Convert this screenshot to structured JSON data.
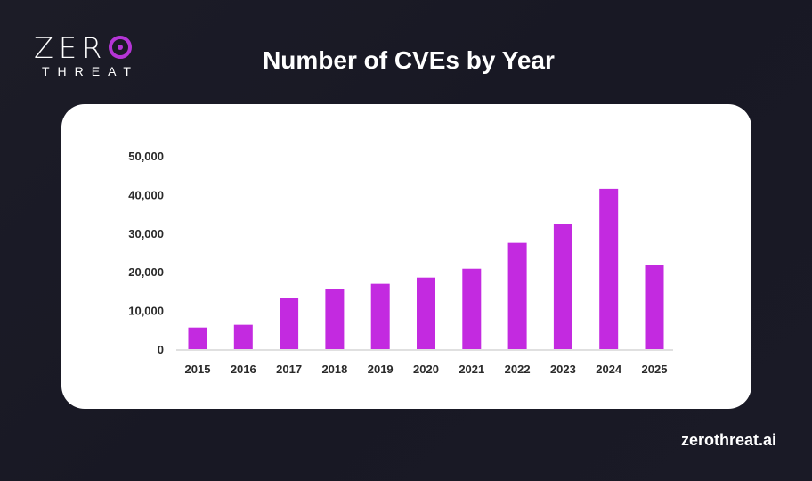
{
  "logo": {
    "line1": "ZER",
    "line2": "THREAT"
  },
  "footer": {
    "site": "zerothreat.ai"
  },
  "colors": {
    "bar": "#c32ae0",
    "background": "#1a1a25",
    "card": "#ffffff"
  },
  "chart_data": {
    "type": "bar",
    "title": "Number of CVEs by Year",
    "xlabel": "",
    "ylabel": "",
    "categories": [
      "2015",
      "2016",
      "2017",
      "2018",
      "2019",
      "2020",
      "2021",
      "2022",
      "2023",
      "2024",
      "2025"
    ],
    "values": [
      5600,
      6300,
      13200,
      15500,
      16900,
      18500,
      20800,
      27500,
      32300,
      41500,
      21700
    ],
    "ylim": [
      0,
      50000
    ],
    "yticks": [
      0,
      10000,
      20000,
      30000,
      40000,
      50000
    ],
    "ytick_labels": [
      "0",
      "10,000",
      "20,000",
      "30,000",
      "40,000",
      "50,000"
    ],
    "grid": false,
    "legend": "none"
  }
}
